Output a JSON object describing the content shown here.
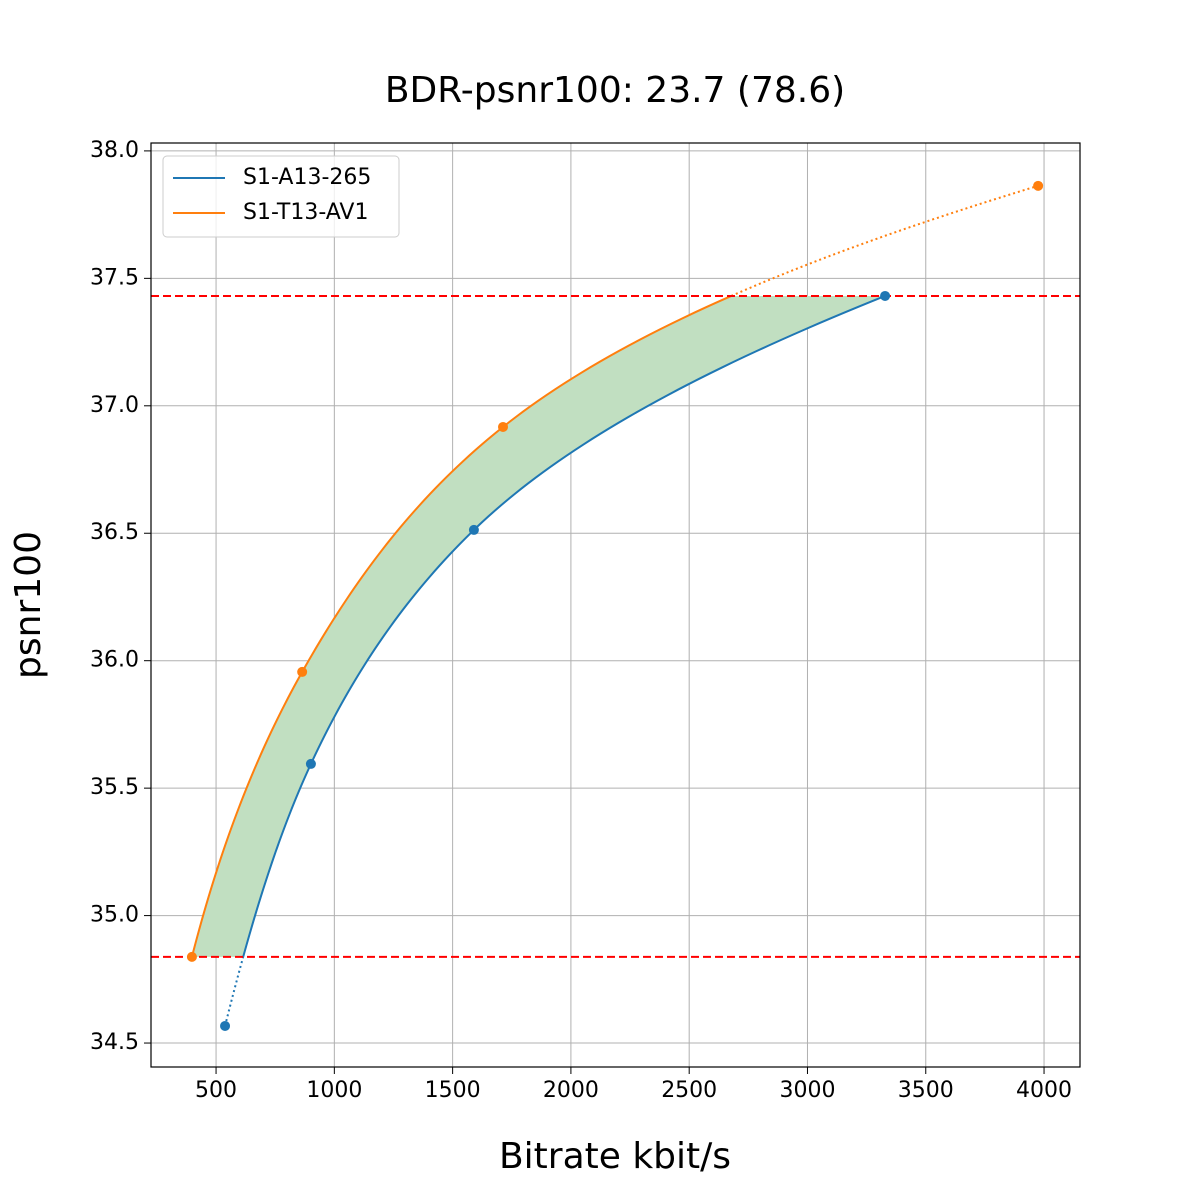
{
  "chart_data": {
    "type": "line",
    "title": "BDR-psnr100: 23.7 (78.6)",
    "x_label": "Bitrate kbit/s",
    "y_label": "psnr100",
    "series": [
      {
        "name": "S1-A13-265",
        "color": "#1f77b4",
        "x": [
          538,
          901,
          1590,
          3328
        ],
        "values": [
          34.567,
          35.595,
          36.513,
          37.431
        ]
      },
      {
        "name": "S1-T13-AV1",
        "color": "#ff7f0e",
        "x": [
          398,
          864,
          1713,
          3975
        ],
        "values": [
          34.838,
          35.956,
          36.917,
          37.863
        ]
      }
    ],
    "hlines": [
      37.431,
      34.838
    ],
    "hline_color": "#ff0000",
    "fill_color": "#c1dfc1",
    "xlim": [
      225,
      4152
    ],
    "ylim": [
      34.406,
      38.031
    ],
    "xticks": [
      500,
      1000,
      1500,
      2000,
      2500,
      3000,
      3500,
      4000
    ],
    "yticks": [
      34.5,
      {
        "value": 35,
        "label": "35.0"
      },
      35.5,
      {
        "value": 36,
        "label": "36.0"
      },
      36.5,
      {
        "value": 37,
        "label": "37.0"
      },
      37.5,
      {
        "value": 38,
        "label": "38.0"
      }
    ],
    "grid": true,
    "legend": "upper left"
  }
}
